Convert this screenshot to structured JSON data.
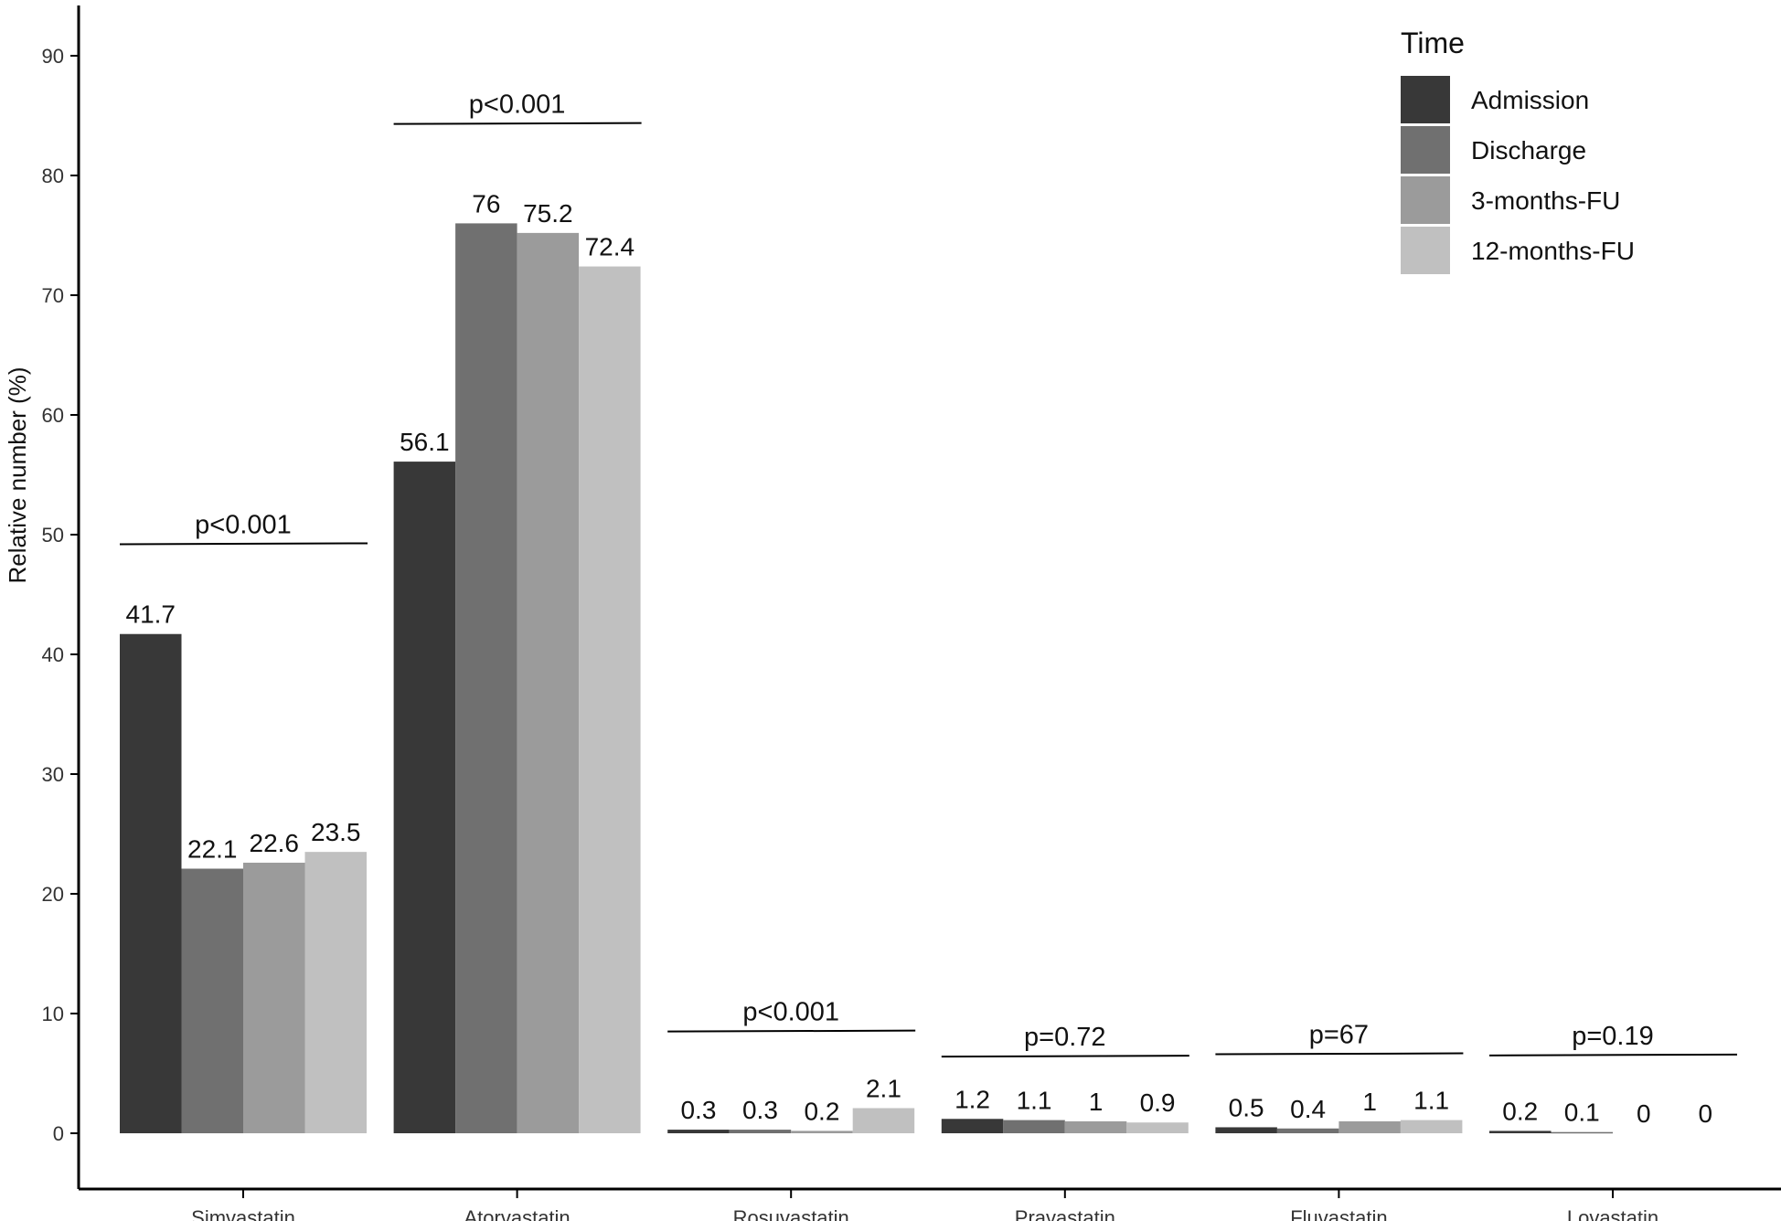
{
  "chart_data": {
    "type": "bar",
    "title": "",
    "xlabel": "",
    "ylabel": "Relative number (%)",
    "ylim": [
      -5,
      94
    ],
    "yticks": [
      0,
      10,
      20,
      30,
      40,
      50,
      60,
      70,
      80,
      90
    ],
    "grid": false,
    "legend": {
      "title": "Time",
      "placement": "top-right"
    },
    "categories": [
      "Simvastatin",
      "Atorvastatin",
      "Rosuvastatin",
      "Pravastatin",
      "Fluvastatin",
      "Lovastatin"
    ],
    "series": [
      {
        "name": "Admission",
        "color": "#383838",
        "values": [
          41.7,
          56.1,
          0.3,
          1.2,
          0.5,
          0.2
        ],
        "labels": [
          "41.7",
          "56.1",
          "0.3",
          "1.2",
          "0.5",
          "0.2"
        ]
      },
      {
        "name": "Discharge",
        "color": "#707070",
        "values": [
          22.1,
          76,
          0.3,
          1.1,
          0.4,
          0.1
        ],
        "labels": [
          "22.1",
          "76",
          "0.3",
          "1.1",
          "0.4",
          "0.1"
        ]
      },
      {
        "name": "3-months-FU",
        "color": "#9b9b9b",
        "values": [
          22.6,
          75.2,
          0.2,
          1,
          1,
          0
        ],
        "labels": [
          "22.6",
          "75.2",
          "0.2",
          "1",
          "1",
          "0"
        ]
      },
      {
        "name": "12-months-FU",
        "color": "#c0c0c0",
        "values": [
          23.5,
          72.4,
          2.1,
          0.9,
          1.1,
          0
        ],
        "labels": [
          "23.5",
          "72.4",
          "2.1",
          "0.9",
          "1.1",
          "0"
        ]
      }
    ],
    "annotations": [
      {
        "category": "Simvastatin",
        "text": "p<0.001",
        "y": 49.2
      },
      {
        "category": "Atorvastatin",
        "text": "p<0.001",
        "y": 84.3
      },
      {
        "category": "Rosuvastatin",
        "text": "p<0.001",
        "y": 8.5
      },
      {
        "category": "Pravastatin",
        "text": "p=0.72",
        "y": 6.4
      },
      {
        "category": "Fluvastatin",
        "text": "p=67",
        "y": 6.6
      },
      {
        "category": "Lovastatin",
        "text": "p=0.19",
        "y": 6.5
      }
    ]
  }
}
